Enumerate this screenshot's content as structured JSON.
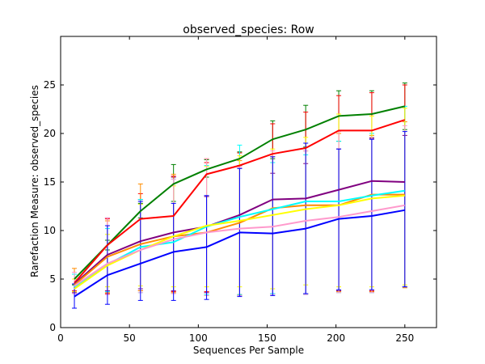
{
  "chart_data": {
    "type": "line",
    "title": "observed_species: Row",
    "xlabel": "Sequences Per Sample",
    "ylabel": "Rarefaction Measure: observed_species",
    "xlim": [
      0,
      273
    ],
    "ylim": [
      0,
      30
    ],
    "xticks": [
      0,
      50,
      100,
      150,
      200,
      250
    ],
    "yticks": [
      0,
      5,
      10,
      15,
      20,
      25
    ],
    "x": [
      10,
      34,
      58,
      82,
      106,
      130,
      154,
      178,
      202,
      226,
      250
    ],
    "grid": false,
    "series": [
      {
        "color": "#008000",
        "values": [
          5.0,
          8.5,
          12.0,
          14.8,
          16.3,
          17.4,
          19.4,
          20.4,
          21.8,
          22.0,
          22.8
        ],
        "err_lo": [
          4.4,
          8.0,
          11.3,
          13.0,
          15.5,
          16.7,
          17.4,
          18.6,
          19.2,
          19.6,
          20.4
        ],
        "err_hi": [
          5.5,
          9.0,
          12.8,
          16.8,
          17.3,
          18.1,
          21.3,
          22.9,
          24.4,
          24.4,
          25.2
        ]
      },
      {
        "color": "#ff0000",
        "values": [
          4.6,
          8.5,
          11.2,
          11.5,
          15.8,
          16.7,
          17.9,
          18.5,
          20.3,
          20.3,
          21.4
        ],
        "err_lo": [
          3.8,
          3.5,
          3.8,
          3.7,
          3.7,
          3.4,
          3.5,
          3.5,
          3.8,
          3.8,
          4.2
        ],
        "err_hi": [
          5.5,
          11.2,
          13.8,
          15.6,
          17.0,
          18.0,
          21.0,
          22.2,
          23.9,
          24.2,
          25.0
        ]
      },
      {
        "color": "#800080",
        "values": [
          4.5,
          7.5,
          8.9,
          9.8,
          10.4,
          11.6,
          13.2,
          13.3,
          14.2,
          15.1,
          15.0
        ],
        "err_lo": [
          3.6,
          3.8,
          4.0,
          3.8,
          3.6,
          3.3,
          3.5,
          3.5,
          3.8,
          3.7,
          4.2
        ],
        "err_hi": [
          5.5,
          11.3,
          13.2,
          15.5,
          13.5,
          16.4,
          15.9,
          16.9,
          18.4,
          19.5,
          19.8
        ]
      },
      {
        "color": "#ff8c00",
        "values": [
          4.4,
          7.3,
          8.6,
          9.4,
          9.8,
          10.8,
          12.3,
          12.6,
          12.6,
          13.7,
          13.7
        ],
        "err_lo": [
          3.5,
          3.6,
          3.8,
          3.6,
          3.3,
          3.4,
          3.5,
          3.5,
          3.7,
          3.7,
          4.1
        ],
        "err_hi": [
          6.1,
          11.0,
          14.8,
          15.8,
          17.4,
          17.2,
          17.6,
          18.2,
          20.0,
          19.8,
          21.2
        ]
      },
      {
        "color": "#00ffff",
        "values": [
          4.2,
          6.5,
          8.3,
          8.8,
          10.4,
          11.4,
          12.2,
          13.0,
          13.0,
          13.6,
          14.1
        ],
        "err_lo": [
          3.5,
          3.7,
          3.6,
          3.5,
          3.4,
          3.4,
          3.5,
          3.4,
          3.6,
          3.6,
          4.2
        ],
        "err_hi": [
          5.5,
          10.2,
          13.2,
          15.3,
          16.7,
          18.8,
          17.0,
          17.8,
          19.2,
          20.0,
          22.8
        ]
      },
      {
        "color": "#ffff00",
        "values": [
          4.0,
          6.4,
          8.0,
          9.4,
          10.5,
          11.0,
          11.6,
          12.2,
          12.6,
          13.3,
          13.6
        ],
        "err_lo": [
          3.7,
          4.2,
          4.3,
          4.2,
          4.2,
          4.2,
          4.0,
          4.4,
          4.2,
          4.2,
          4.4
        ],
        "err_hi": [
          5.0,
          9.6,
          12.7,
          14.6,
          16.6,
          17.7,
          18.4,
          19.6,
          22.0,
          21.8,
          22.6
        ]
      },
      {
        "color": "#ff99cc",
        "values": [
          4.3,
          6.6,
          8.0,
          9.1,
          9.8,
          10.2,
          10.4,
          11.0,
          11.4,
          12.0,
          12.6
        ],
        "err_lo": [
          3.5,
          3.4,
          3.6,
          3.5,
          3.3,
          3.3,
          3.4,
          3.4,
          3.6,
          3.6,
          4.2
        ],
        "err_hi": [
          5.7,
          11.3,
          13.0,
          15.3,
          17.4,
          16.6,
          18.2,
          18.2,
          20.2,
          19.6,
          20.8
        ]
      },
      {
        "color": "#0000ff",
        "values": [
          3.2,
          5.4,
          6.6,
          7.8,
          8.3,
          9.8,
          9.7,
          10.2,
          11.2,
          11.5,
          12.1
        ],
        "err_lo": [
          2.0,
          2.4,
          2.8,
          2.8,
          2.9,
          3.2,
          3.3,
          3.5,
          3.9,
          3.9,
          4.2
        ],
        "err_hi": [
          4.5,
          10.5,
          13.0,
          12.8,
          13.6,
          16.4,
          17.6,
          19.0,
          18.4,
          19.4,
          20.2
        ]
      }
    ]
  }
}
